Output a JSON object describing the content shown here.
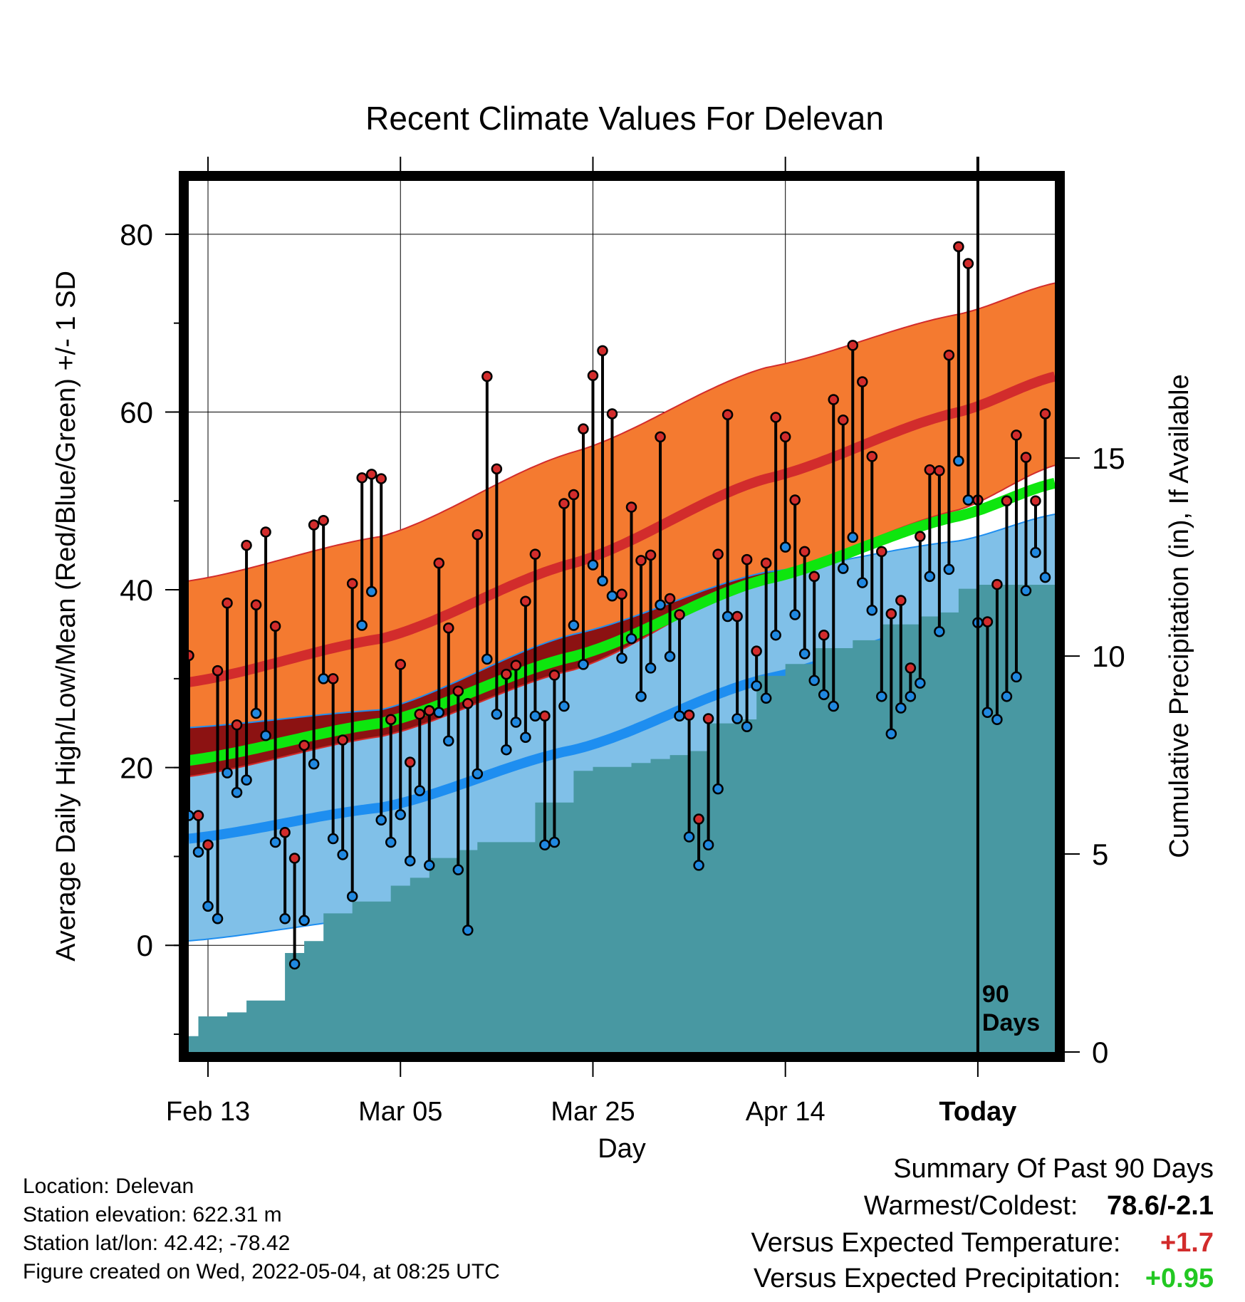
{
  "chart_data": {
    "type": "line",
    "title": "Recent Climate Values For Delevan",
    "xlabel": "Day",
    "ylabel": "Average Daily High/Low/Mean (Red/Blue/Green) +/- 1 SD",
    "y2label": "Cumulative Precipitation (in), If Available",
    "x_range_days": [
      -82,
      8
    ],
    "x_ticks": [
      {
        "label": "Feb 13",
        "day": -80
      },
      {
        "label": "Mar 05",
        "day": -60
      },
      {
        "label": "Mar 25",
        "day": -40
      },
      {
        "label": "Apr 14",
        "day": -20
      },
      {
        "label": "Today",
        "day": 0
      }
    ],
    "ylim": [
      -12,
      86
    ],
    "y_ticks": [
      0,
      20,
      40,
      60,
      80
    ],
    "y2lim": [
      0,
      22
    ],
    "y2_ticks": [
      0,
      5,
      10,
      15
    ],
    "today_marker": "90\nDays",
    "colors": {
      "high_band": "#f47a30",
      "high_mean": "#d22c2c",
      "low_band": "#80c0e8",
      "low_mean": "#1e8ef0",
      "mean": "#0ee60e",
      "overlap": "#8c1212",
      "precip": "#4898a2",
      "high_dot": "#d22c2c",
      "low_dot": "#2088e0"
    },
    "normals": {
      "x": [
        -82,
        -62,
        -42,
        -22,
        -2,
        8
      ],
      "high_mean": [
        29.6,
        34.5,
        43.0,
        52.5,
        60.0,
        64.0
      ],
      "high_upper": [
        41.0,
        46.0,
        55.5,
        65.0,
        71.0,
        74.5
      ],
      "high_lower": [
        19.0,
        23.5,
        31.0,
        41.5,
        49.0,
        54.0
      ],
      "low_mean": [
        12.0,
        15.5,
        22.0,
        30.0,
        36.5,
        40.0
      ],
      "low_upper": [
        24.5,
        26.5,
        35.0,
        42.0,
        45.5,
        48.5
      ],
      "low_lower": [
        0.5,
        3.2,
        11.0,
        21.0,
        27.5,
        32.0
      ],
      "mean": [
        20.8,
        25.0,
        32.5,
        41.2,
        48.3,
        52.0
      ]
    },
    "daily": {
      "start_day": -82,
      "highs": [
        32.6,
        14.6,
        11.3,
        30.9,
        38.5,
        24.8,
        45.0,
        38.3,
        46.5,
        35.9,
        12.7,
        9.8,
        22.5,
        47.3,
        47.8,
        30.0,
        23.1,
        40.7,
        52.6,
        53.0,
        52.5,
        25.4,
        31.6,
        20.6,
        26.0,
        26.4,
        43.0,
        35.7,
        28.6,
        27.2,
        46.2,
        64.0,
        53.6,
        30.5,
        31.5,
        38.7,
        44.0,
        25.8,
        30.4,
        49.7,
        50.7,
        58.1,
        64.1,
        66.9,
        59.8,
        39.5,
        49.3,
        43.3,
        43.9,
        57.2,
        39.0,
        37.2,
        25.9,
        14.2,
        25.5,
        44.0,
        59.7,
        37.0,
        43.4,
        33.1,
        43.0,
        59.4,
        57.2,
        50.1,
        44.3,
        41.5,
        34.9,
        61.4,
        59.1,
        67.5,
        63.4,
        55.0,
        44.3,
        37.3,
        38.8,
        31.2,
        46.0,
        53.5,
        53.4,
        66.4,
        78.6,
        76.7,
        50.1,
        36.4,
        40.6,
        50.0,
        57.4,
        54.9,
        50.0,
        59.8
      ],
      "lows": [
        14.6,
        10.5,
        4.4,
        3.0,
        19.4,
        17.2,
        18.6,
        26.1,
        23.6,
        11.6,
        3.0,
        -2.1,
        2.8,
        20.4,
        30.0,
        12.0,
        10.2,
        5.5,
        36.0,
        39.8,
        14.1,
        11.6,
        14.7,
        9.5,
        17.4,
        9.0,
        26.2,
        23.0,
        8.5,
        1.7,
        19.3,
        32.2,
        26.0,
        22.0,
        25.1,
        23.4,
        25.8,
        11.3,
        11.6,
        26.9,
        36.0,
        31.6,
        42.8,
        41.0,
        39.3,
        32.3,
        34.5,
        28.0,
        31.2,
        38.3,
        32.5,
        25.8,
        12.2,
        9.0,
        11.3,
        17.6,
        37.0,
        25.5,
        24.6,
        29.2,
        27.8,
        34.9,
        44.8,
        37.2,
        32.8,
        29.8,
        28.2,
        26.9,
        42.4,
        45.9,
        40.8,
        37.7,
        28.0,
        23.8,
        26.7,
        28.0,
        29.5,
        41.5,
        35.3,
        42.3,
        54.5,
        50.1,
        36.3,
        26.2,
        25.4,
        28.0,
        30.2,
        39.9,
        44.2,
        41.4
      ]
    },
    "precip_cumulative": {
      "days": [
        -82,
        -81,
        -80,
        -78,
        -76,
        -74,
        -72,
        -70,
        -68,
        -65,
        -63,
        -61,
        -59,
        -57,
        -54,
        -52,
        -50,
        -48,
        -46,
        -44,
        -42,
        -40,
        -38,
        -36,
        -34,
        -32,
        -30,
        -28,
        -25,
        -23,
        -20,
        -17,
        -13,
        -10,
        -6,
        -4,
        -2,
        0,
        8
      ],
      "values": [
        0.4,
        0.9,
        0.9,
        1.0,
        1.3,
        1.3,
        2.5,
        2.8,
        3.5,
        3.8,
        3.8,
        4.2,
        4.4,
        4.9,
        5.1,
        5.3,
        5.3,
        5.3,
        6.3,
        6.3,
        7.1,
        7.2,
        7.2,
        7.3,
        7.4,
        7.5,
        7.6,
        8.3,
        8.4,
        9.5,
        9.8,
        10.2,
        10.4,
        10.8,
        11.0,
        11.1,
        11.7,
        11.8,
        11.8
      ]
    }
  },
  "info": {
    "location": "Location: Delevan",
    "elevation": "Station elevation: 622.31 m",
    "latlon": "Station lat/lon: 42.42; -78.42",
    "created": "Figure created on Wed, 2022-05-04, at 08:25 UTC"
  },
  "summary": {
    "heading": "Summary Of Past 90 Days",
    "warmest_label": "Warmest/Coldest:",
    "warmest_value": "78.6/-2.1",
    "temp_label": "Versus Expected Temperature:",
    "temp_value": "+1.7",
    "precip_label": "Versus Expected Precipitation:",
    "precip_value": "+0.95",
    "temp_color": "#d22c2c",
    "precip_color": "#22c822"
  }
}
